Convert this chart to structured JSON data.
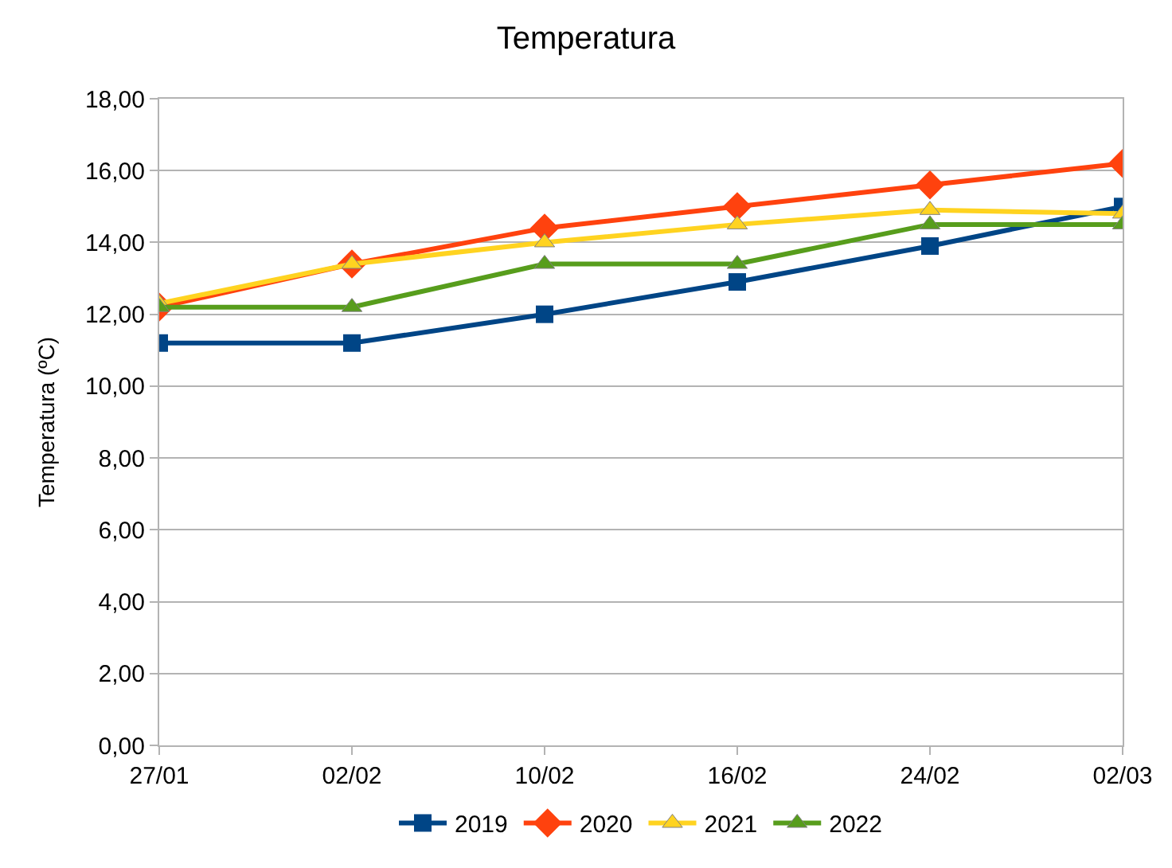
{
  "chart_data": {
    "type": "line",
    "title": "Temperatura",
    "ylabel": "Temperatura (ºC)",
    "categories": [
      "27/01",
      "02/02",
      "10/02",
      "16/02",
      "24/02",
      "02/03"
    ],
    "series": [
      {
        "name": "2019",
        "color": "#004586",
        "marker": "square",
        "values": [
          11.2,
          11.2,
          12.0,
          12.9,
          13.9,
          15.0
        ]
      },
      {
        "name": "2020",
        "color": "#ff420e",
        "marker": "diamond",
        "values": [
          12.2,
          13.4,
          14.4,
          15.0,
          15.6,
          16.2
        ]
      },
      {
        "name": "2021",
        "color": "#ffd320",
        "marker": "triangle",
        "values": [
          12.3,
          13.4,
          14.0,
          14.5,
          14.9,
          14.8
        ]
      },
      {
        "name": "2022",
        "color": "#579d1c",
        "marker": "triangle",
        "values": [
          12.2,
          12.2,
          13.4,
          13.4,
          14.5,
          14.5
        ]
      }
    ],
    "ylim": [
      0,
      18
    ],
    "yticks": [
      {
        "value": 0,
        "label": "0,00"
      },
      {
        "value": 2,
        "label": "2,00"
      },
      {
        "value": 4,
        "label": "4,00"
      },
      {
        "value": 6,
        "label": "6,00"
      },
      {
        "value": 8,
        "label": "8,00"
      },
      {
        "value": 10,
        "label": "10,00"
      },
      {
        "value": 12,
        "label": "12,00"
      },
      {
        "value": 14,
        "label": "14,00"
      },
      {
        "value": 16,
        "label": "16,00"
      },
      {
        "value": 18,
        "label": "18,00"
      }
    ],
    "grid": "y",
    "legend": "bottom"
  }
}
